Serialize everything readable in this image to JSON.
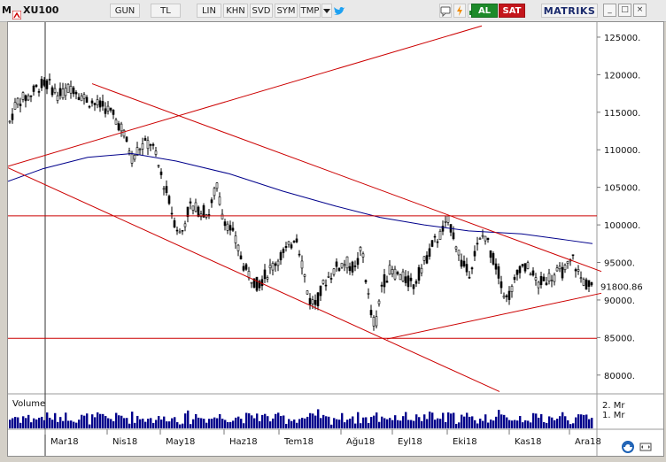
{
  "toolbar": {
    "logo": "M",
    "symbol": "XU100",
    "buttons": {
      "period": "GUN",
      "currency": "TL",
      "scale": "LIN",
      "khn": "KHN",
      "svd": "SVD",
      "sym": "SYM",
      "tmp": "TMP"
    },
    "icons": {
      "dropdown": "chevron-down-icon",
      "twitter": "twitter-icon",
      "chat": "chat-icon",
      "refresh": "refresh-icon",
      "chart_type": "bar-chart-icon"
    },
    "buy_label": "AL",
    "sell_label": "SAT",
    "brand": "MATRIKS"
  },
  "window_controls": {
    "minimize": "_",
    "maximize": "□",
    "close": "×"
  },
  "chart_data": {
    "type": "candlestick",
    "symbol": "XU100",
    "last_price": "91800.86",
    "y_axis": {
      "ticks": [
        "125000.",
        "120000.",
        "115000.",
        "110000.",
        "105000.",
        "100000.",
        "95000.",
        "90000.",
        "85000.",
        "80000."
      ],
      "range": [
        77500,
        127000
      ]
    },
    "x_axis": {
      "ticks": [
        "Mar18",
        "Nis18",
        "May18",
        "Haz18",
        "Tem18",
        "Ağu18",
        "Eyl18",
        "Eki18",
        "Kas18",
        "Ara18"
      ]
    },
    "volume": {
      "label": "Volume",
      "ticks": [
        "2. Mr",
        "1. Mr"
      ]
    },
    "colors": {
      "trendline": "#cc0000",
      "moving_average": "#00008b",
      "candles": "#000000",
      "volume": "#00008b"
    }
  }
}
